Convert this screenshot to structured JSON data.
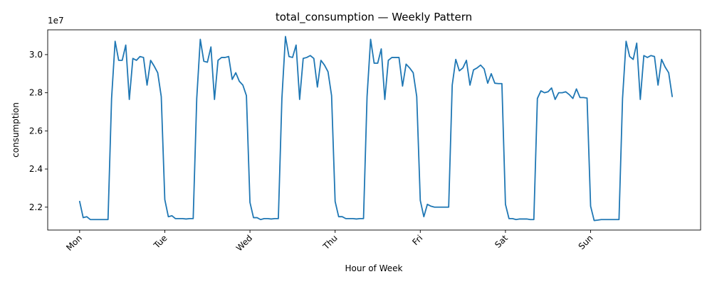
{
  "chart_data": {
    "type": "line",
    "title": "total_consumption — Weekly Pattern",
    "xlabel": "Hour of Week",
    "ylabel": "consumption",
    "y_offset_label": "1e7",
    "y_scale": 10000000,
    "xlim": [
      -9,
      175
    ],
    "ylim": [
      2.08,
      3.13
    ],
    "x_ticks": [
      {
        "value": 0,
        "label": "Mon"
      },
      {
        "value": 24,
        "label": "Tue"
      },
      {
        "value": 48,
        "label": "Wed"
      },
      {
        "value": 72,
        "label": "Thu"
      },
      {
        "value": 96,
        "label": "Fri"
      },
      {
        "value": 120,
        "label": "Sat"
      },
      {
        "value": 144,
        "label": "Sun"
      }
    ],
    "y_ticks": [
      {
        "value": 2.2,
        "label": "2.2"
      },
      {
        "value": 2.4,
        "label": "2.4"
      },
      {
        "value": 2.6,
        "label": "2.6"
      },
      {
        "value": 2.8,
        "label": "2.8"
      },
      {
        "value": 3.0,
        "label": "3.0"
      }
    ],
    "grid": false,
    "legend": "none",
    "series": [
      {
        "color": "#1f77b4",
        "values": [
          2.23,
          2.145,
          2.15,
          2.135,
          2.135,
          2.135,
          2.135,
          2.135,
          2.135,
          2.77,
          3.07,
          2.97,
          2.97,
          3.05,
          2.765,
          2.98,
          2.97,
          2.99,
          2.985,
          2.84,
          2.97,
          2.94,
          2.905,
          2.78,
          2.24,
          2.15,
          2.155,
          2.14,
          2.14,
          2.14,
          2.138,
          2.14,
          2.14,
          2.77,
          3.08,
          2.965,
          2.96,
          3.04,
          2.765,
          2.97,
          2.985,
          2.985,
          2.99,
          2.87,
          2.905,
          2.86,
          2.84,
          2.785,
          2.225,
          2.145,
          2.145,
          2.135,
          2.14,
          2.14,
          2.138,
          2.14,
          2.14,
          2.77,
          3.095,
          2.99,
          2.985,
          3.05,
          2.765,
          2.98,
          2.985,
          2.995,
          2.98,
          2.83,
          2.97,
          2.945,
          2.91,
          2.785,
          2.23,
          2.15,
          2.15,
          2.14,
          2.14,
          2.14,
          2.138,
          2.14,
          2.14,
          2.78,
          3.08,
          2.955,
          2.955,
          3.03,
          2.765,
          2.97,
          2.985,
          2.985,
          2.985,
          2.835,
          2.95,
          2.93,
          2.905,
          2.78,
          2.235,
          2.15,
          2.215,
          2.205,
          2.2,
          2.2,
          2.2,
          2.2,
          2.2,
          2.84,
          2.975,
          2.915,
          2.93,
          2.97,
          2.84,
          2.92,
          2.93,
          2.945,
          2.925,
          2.85,
          2.9,
          2.85,
          2.848,
          2.848,
          2.215,
          2.14,
          2.14,
          2.135,
          2.138,
          2.138,
          2.138,
          2.135,
          2.135,
          2.77,
          2.81,
          2.8,
          2.805,
          2.825,
          2.765,
          2.8,
          2.8,
          2.805,
          2.79,
          2.77,
          2.82,
          2.775,
          2.775,
          2.772,
          2.205,
          2.13,
          2.132,
          2.135,
          2.135,
          2.135,
          2.135,
          2.135,
          2.135,
          2.77,
          3.07,
          2.99,
          2.975,
          3.06,
          2.765,
          2.995,
          2.985,
          2.995,
          2.99,
          2.84,
          2.975,
          2.935,
          2.905,
          2.78
        ]
      }
    ]
  }
}
